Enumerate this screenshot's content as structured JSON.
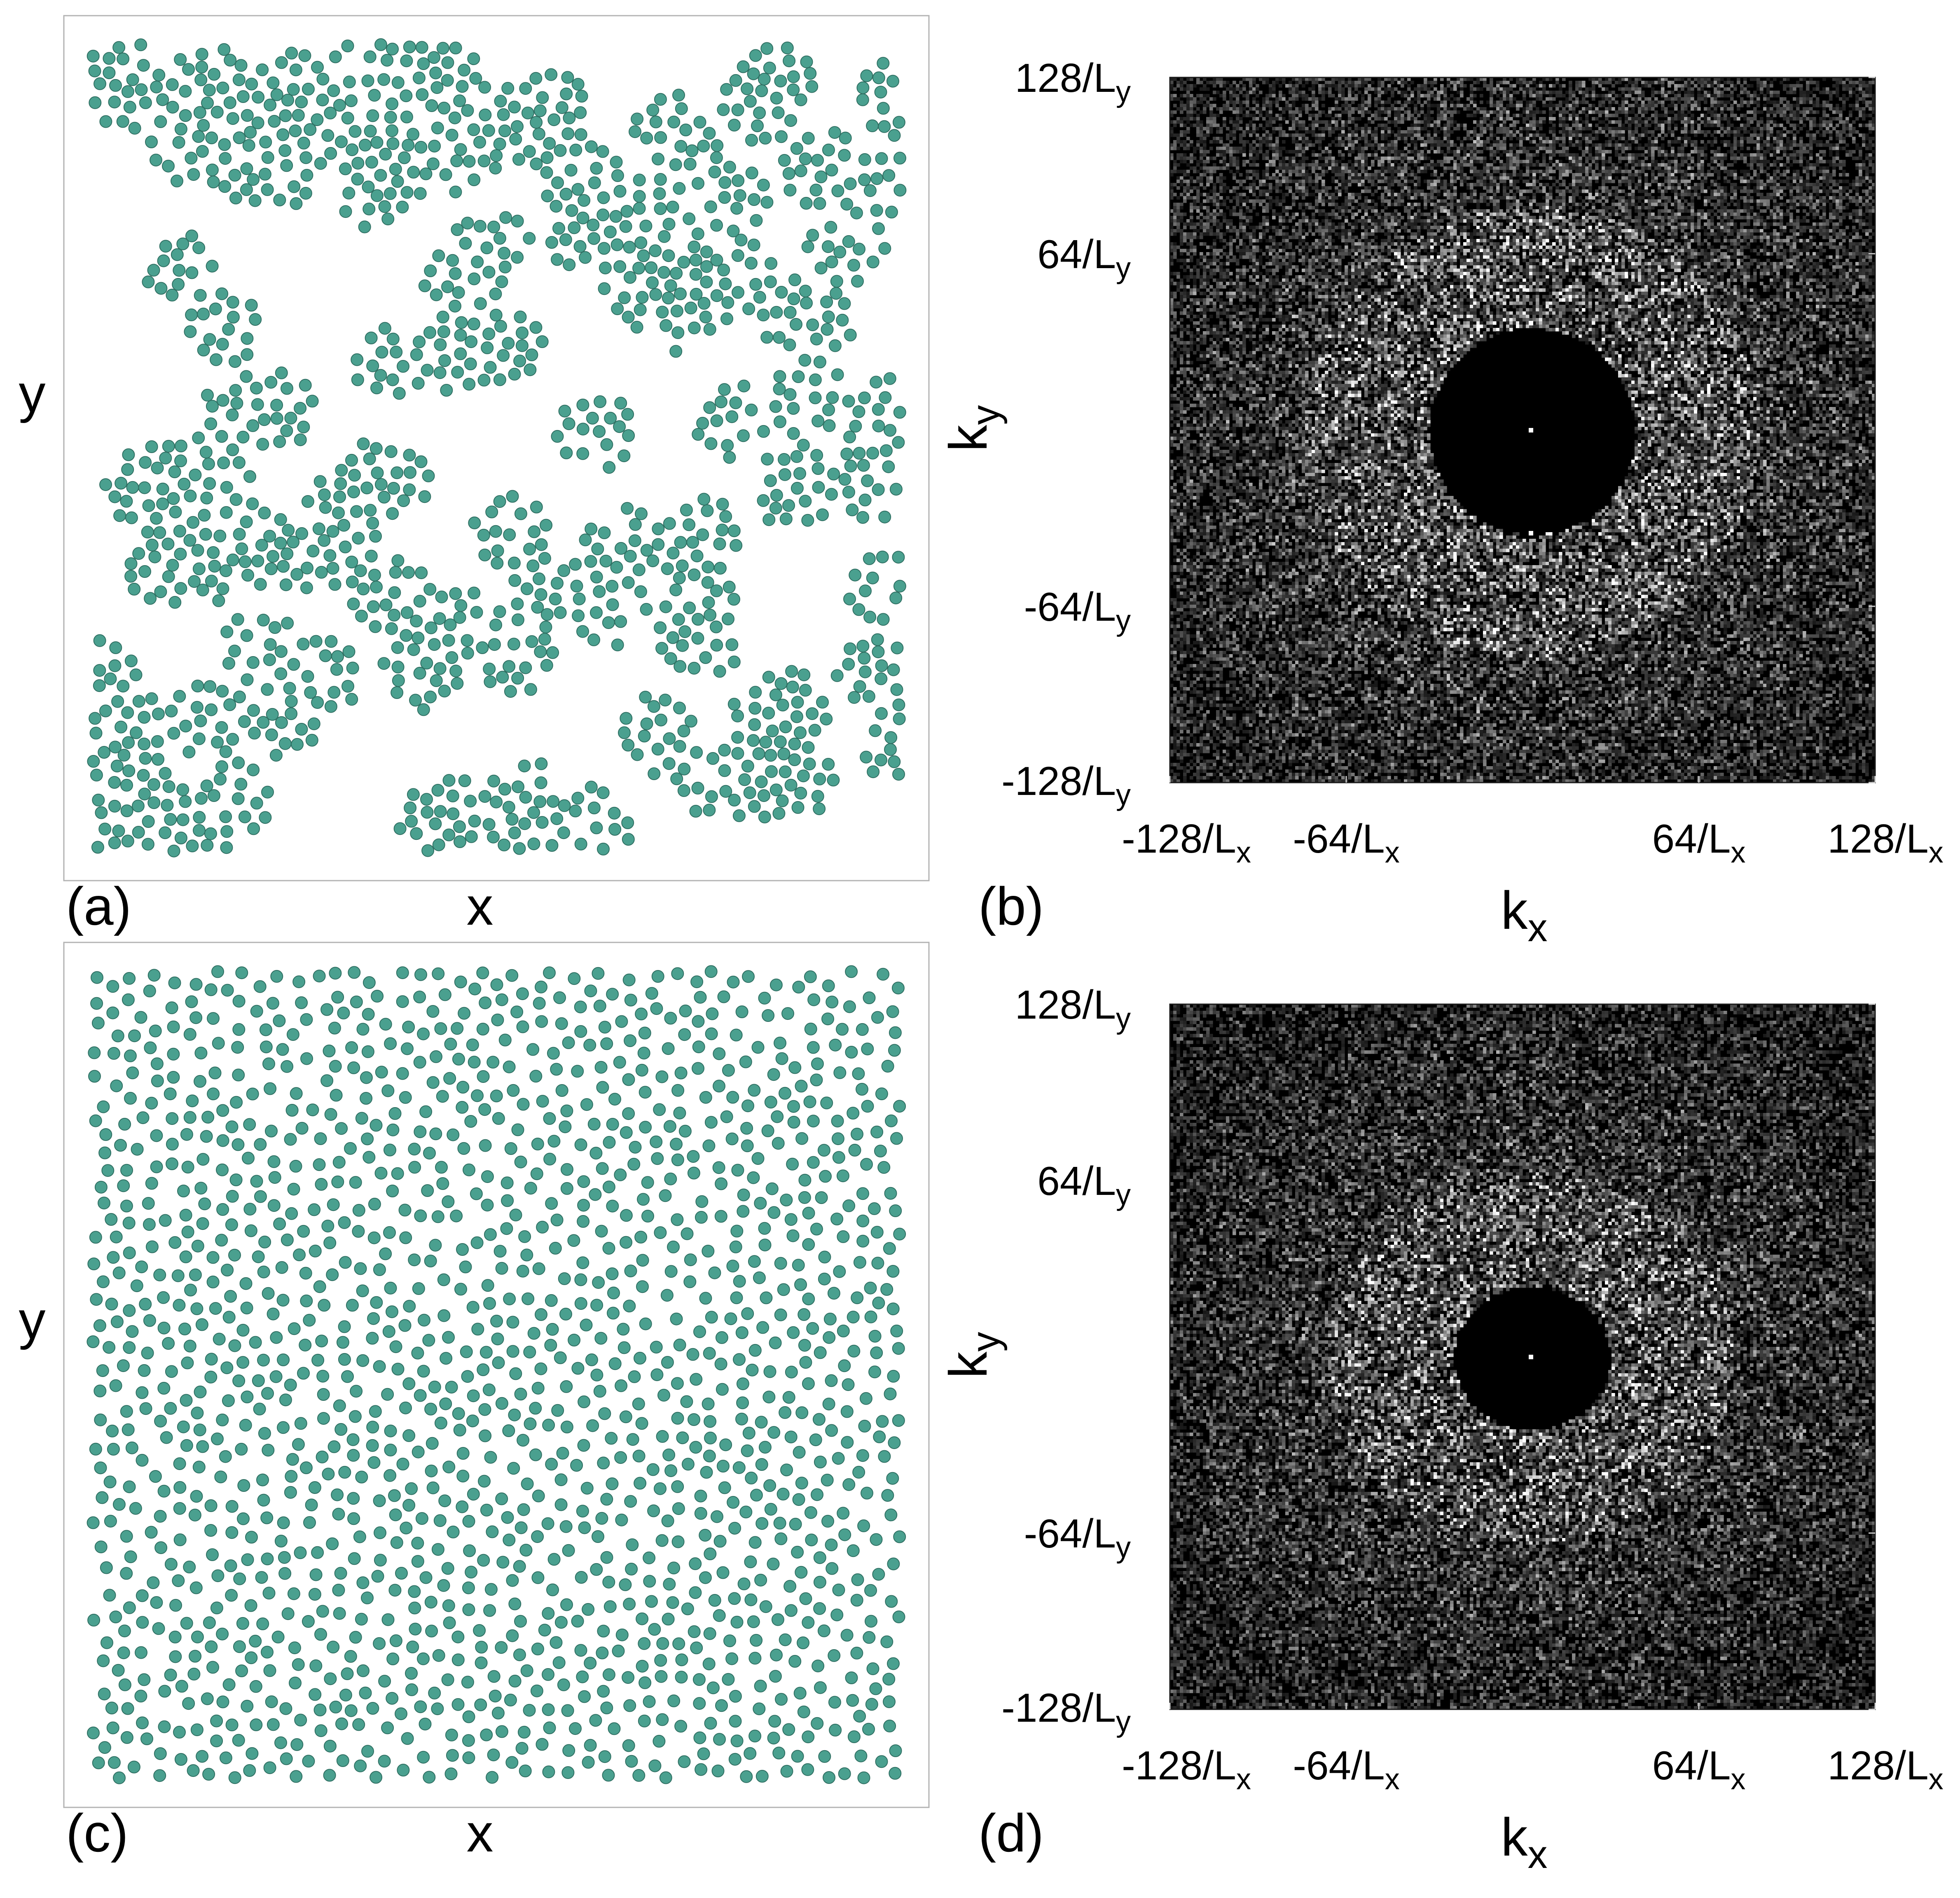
{
  "figure": {
    "panels": [
      {
        "id": "a",
        "panel_label": "(a)",
        "xlabel": "x",
        "ylabel": "y",
        "particle_color": "#4aa08f",
        "particle_edge_color": "#2f6f62",
        "frame_color": "#b3b3b3",
        "particle_layout": "clustered",
        "particle_count": 1400,
        "seed": 17
      },
      {
        "id": "b",
        "panel_label": "(b)",
        "xlabel_main": "k",
        "xlabel_sub": "x",
        "ylabel_main": "k",
        "ylabel_sub": "y",
        "x_ticks": [
          {
            "value": -128,
            "num": "-128/L",
            "sub": "x"
          },
          {
            "value": -64,
            "num": "-64/L",
            "sub": "x"
          },
          {
            "value": 64,
            "num": "64/L",
            "sub": "x"
          },
          {
            "value": 128,
            "num": "128/L",
            "sub": "x"
          }
        ],
        "y_ticks": [
          {
            "value": 128,
            "num": "128/L",
            "sub": "y"
          },
          {
            "value": 64,
            "num": "64/L",
            "sub": "y"
          },
          {
            "value": -64,
            "num": "-64/L",
            "sub": "y"
          },
          {
            "value": -128,
            "num": "-128/L",
            "sub": "y"
          }
        ],
        "xlim": [
          -128,
          128
        ],
        "ylim": [
          -128,
          128
        ],
        "colormap": "grayscale",
        "background_color": "#000000",
        "structure": "dark central disk with bright ring",
        "seed": 29
      },
      {
        "id": "c",
        "panel_label": "(c)",
        "xlabel": "x",
        "ylabel": "y",
        "particle_color": "#4aa08f",
        "particle_edge_color": "#2f6f62",
        "frame_color": "#b3b3b3",
        "particle_layout": "uniform",
        "particle_count": 1500,
        "seed": 41
      },
      {
        "id": "d",
        "panel_label": "(d)",
        "xlabel_main": "k",
        "xlabel_sub": "x",
        "ylabel_main": "k",
        "ylabel_sub": "y",
        "x_ticks": [
          {
            "value": -128,
            "num": "-128/L",
            "sub": "x"
          },
          {
            "value": -64,
            "num": "-64/L",
            "sub": "x"
          },
          {
            "value": 64,
            "num": "64/L",
            "sub": "x"
          },
          {
            "value": 128,
            "num": "128/L",
            "sub": "x"
          }
        ],
        "y_ticks": [
          {
            "value": 128,
            "num": "128/L",
            "sub": "y"
          },
          {
            "value": 64,
            "num": "64/L",
            "sub": "y"
          },
          {
            "value": -64,
            "num": "-64/L",
            "sub": "y"
          },
          {
            "value": -128,
            "num": "-128/L",
            "sub": "y"
          }
        ],
        "xlim": [
          -128,
          128
        ],
        "ylim": [
          -128,
          128
        ],
        "colormap": "grayscale",
        "background_color": "#000000",
        "structure": "small dark central disk with bright central peak",
        "seed": 53
      }
    ]
  }
}
